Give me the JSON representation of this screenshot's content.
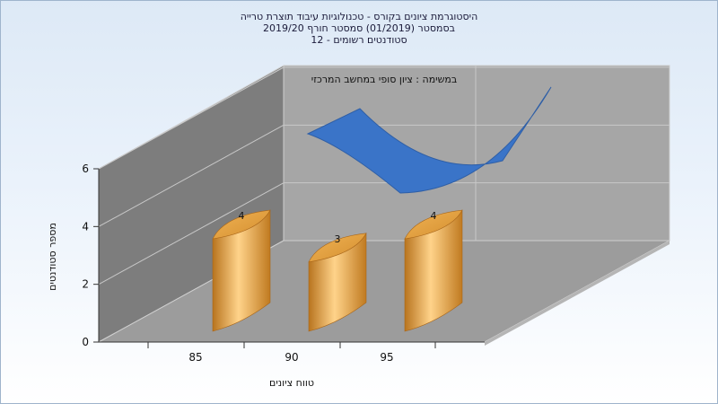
{
  "header": {
    "title_line1": "היסטוגרמת ציונים בקורס - טכנולוגיות עיבוד תוצרת טרייה",
    "title_line2": "בסמסטר   (01/2019)   סמסטר חורף 2019/20",
    "title_line3": "סטודנטים רשומים - 12"
  },
  "colors": {
    "bar": "#e8a33c",
    "surface": "#3a74c8",
    "back_wall": "#a6a6a6",
    "floor": "#9c9c9c",
    "side_wall": "#7d7d7d"
  },
  "chart_data": {
    "type": "bar",
    "xlabel": "טווח ציונים",
    "ylabel": "מספר סטודנטים",
    "categories": [
      "85",
      "90",
      "95"
    ],
    "ylim": [
      0,
      6
    ],
    "yticks": [
      "0",
      "2",
      "4",
      "6"
    ],
    "series": [
      {
        "type": "bar",
        "values": [
          4,
          3,
          4
        ]
      },
      {
        "type": "area",
        "name": "במשימה : ציון סופי במחשב המרכזי",
        "values": [
          4,
          3,
          4
        ]
      }
    ],
    "data_labels": [
      "4",
      "3",
      "4"
    ],
    "legend_position": "top",
    "grid": true
  }
}
